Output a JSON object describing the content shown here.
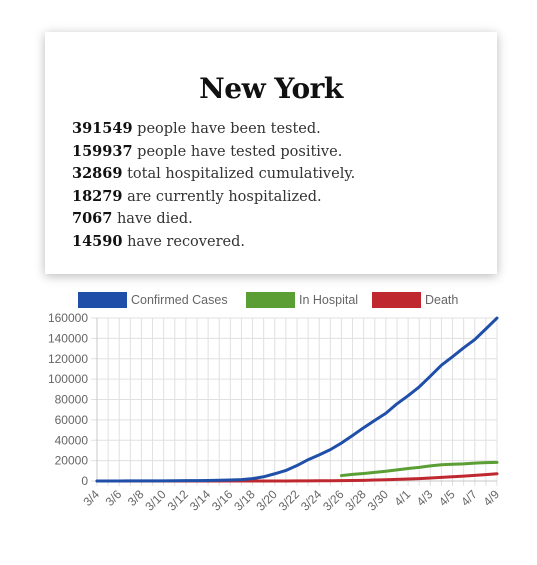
{
  "card": {
    "title": "New York",
    "stats": [
      {
        "value": "391549",
        "text": "people have been tested."
      },
      {
        "value": "159937",
        "text": "people have tested positive."
      },
      {
        "value": "32869",
        "text": "total hospitalized cumulatively."
      },
      {
        "value": "18279",
        "text": "are currently hospitalized."
      },
      {
        "value": "7067",
        "text": "have died."
      },
      {
        "value": "14590",
        "text": "have recovered."
      }
    ]
  },
  "chart_data": {
    "type": "line",
    "legend_position": "top",
    "grid": true,
    "x": [
      "3/4",
      "3/5",
      "3/6",
      "3/7",
      "3/8",
      "3/9",
      "3/10",
      "3/11",
      "3/12",
      "3/13",
      "3/14",
      "3/15",
      "3/16",
      "3/17",
      "3/18",
      "3/19",
      "3/20",
      "3/21",
      "3/22",
      "3/23",
      "3/24",
      "3/25",
      "3/26",
      "3/27",
      "3/28",
      "3/29",
      "3/30",
      "3/31",
      "4/1",
      "4/2",
      "4/3",
      "4/4",
      "4/5",
      "4/6",
      "4/7",
      "4/8",
      "4/9"
    ],
    "x_tick_labels": [
      "3/4",
      "3/6",
      "3/8",
      "3/10",
      "3/12",
      "3/14",
      "3/16",
      "3/18",
      "3/20",
      "3/22",
      "3/24",
      "3/26",
      "3/28",
      "3/30",
      "4/1",
      "4/3",
      "4/5",
      "4/7",
      "4/9"
    ],
    "ylim": [
      0,
      160000
    ],
    "y_ticks": [
      0,
      20000,
      40000,
      60000,
      80000,
      100000,
      120000,
      140000,
      160000
    ],
    "series": [
      {
        "name": "Confirmed Cases",
        "color": "#1f4fa8",
        "values": [
          11,
          22,
          33,
          76,
          105,
          142,
          173,
          216,
          325,
          421,
          524,
          729,
          950,
          1374,
          2382,
          4152,
          7102,
          10356,
          15168,
          20875,
          25665,
          30811,
          37258,
          44635,
          52318,
          59513,
          66497,
          75795,
          83712,
          92381,
          102863,
          113704,
          122031,
          130689,
          138863,
          149316,
          159937
        ]
      },
      {
        "name": "In Hospital",
        "color": "#5a9e34",
        "values": [
          null,
          null,
          null,
          null,
          null,
          null,
          null,
          null,
          null,
          null,
          null,
          null,
          null,
          null,
          null,
          null,
          null,
          null,
          null,
          null,
          null,
          null,
          5327,
          6481,
          7328,
          8503,
          9517,
          10929,
          12226,
          13383,
          14810,
          15905,
          16479,
          16837,
          17493,
          18079,
          18279
        ]
      },
      {
        "name": "Death",
        "color": "#c0282f",
        "values": [
          0,
          0,
          0,
          0,
          0,
          0,
          0,
          0,
          0,
          0,
          0,
          3,
          7,
          12,
          16,
          27,
          35,
          52,
          95,
          157,
          210,
          285,
          385,
          519,
          672,
          965,
          1218,
          1550,
          1941,
          2373,
          2935,
          3565,
          4159,
          4758,
          5489,
          6268,
          7067
        ]
      }
    ]
  }
}
